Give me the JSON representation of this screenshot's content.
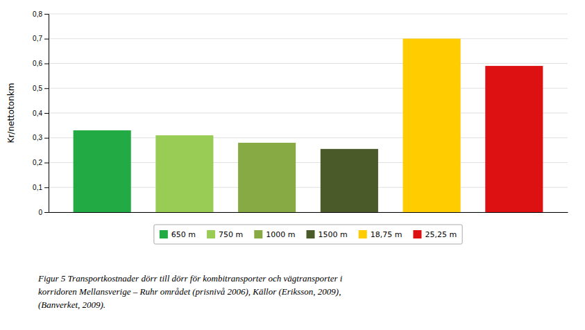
{
  "chart_data": {
    "type": "bar",
    "categories": [
      "650 m",
      "750 m",
      "1000 m",
      "1500 m",
      "18,75 m",
      "25,25 m"
    ],
    "values": [
      0.33,
      0.31,
      0.28,
      0.255,
      0.7,
      0.59
    ],
    "colors": [
      "#22AA44",
      "#99CC55",
      "#88AA44",
      "#4A5A28",
      "#FFCC00",
      "#DD1111"
    ],
    "y_label": "Kr/nettotonkm",
    "ylim": [
      0,
      0.8
    ],
    "yticks": [
      0,
      {
        "value": 0.1,
        "label": "0,1"
      },
      {
        "value": 0.2,
        "label": "0,2"
      },
      {
        "value": 0.3,
        "label": "0,3"
      },
      {
        "value": 0.4,
        "label": "0,4"
      },
      {
        "value": 0.5,
        "label": "0,5"
      },
      {
        "value": 0.6,
        "label": "0,6"
      },
      {
        "value": 0.7,
        "label": "0,7"
      },
      {
        "value": 0.8,
        "label": "0,8"
      }
    ],
    "grid": true,
    "legend": "bottom",
    "tick_labels": "y",
    "annotations": [
      "Figur 5 Transportkostnader dörr till dörr för kombitransporter och vägtransporter i",
      "korridoren Mellansverige – Ruhr området (prisnivå 2006), Källor (Eriksson, 2009),",
      "(Banverket, 2009)."
    ]
  }
}
